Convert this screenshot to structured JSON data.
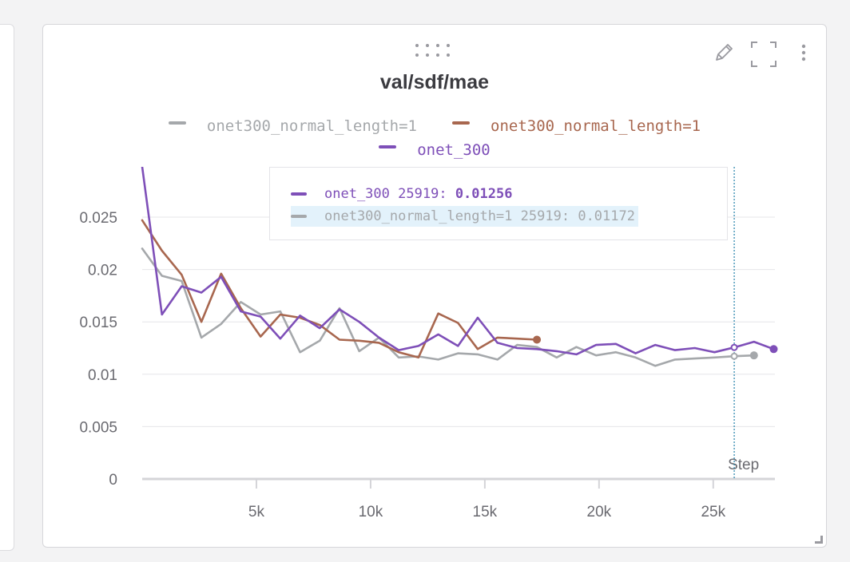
{
  "panel": {
    "title": "val/sdf/mae",
    "icons": {
      "edit": "pencil-icon",
      "fullscreen": "fullscreen-icon",
      "more": "more-vertical-icon",
      "drag": "drag-handle-icon"
    }
  },
  "colors": {
    "gray": "#a5a8ab",
    "brown": "#a8674f",
    "purple": "#7e4fb8",
    "cursor": "#1f7fa8"
  },
  "legend": [
    {
      "label": "onet300_normal_length=1",
      "color": "#a5a8ab"
    },
    {
      "label": "onet300_normal_length=1",
      "color": "#a8674f"
    },
    {
      "label": "onet_300",
      "color": "#7e4fb8"
    }
  ],
  "tooltip": {
    "rows": [
      {
        "series": "onet_300",
        "step": "25919:",
        "value": "0.01256",
        "color": "#7e4fb8",
        "bold_value": true,
        "highlight": false
      },
      {
        "series": "onet300_normal_length=1",
        "step": "25919:",
        "value": "0.01172",
        "color": "#a5a8ab",
        "bold_value": false,
        "highlight": true
      }
    ]
  },
  "chart_data": {
    "type": "line",
    "title": "val/sdf/mae",
    "xlabel": "Step",
    "ylabel": "",
    "xlim": [
      0,
      27700
    ],
    "ylim": [
      0,
      0.0252
    ],
    "x_ticks": [
      5000,
      10000,
      15000,
      20000,
      25000
    ],
    "x_tick_labels": [
      "5k",
      "10k",
      "15k",
      "20k",
      "25k"
    ],
    "y_ticks": [
      0,
      0.005,
      0.01,
      0.015,
      0.02,
      0.025
    ],
    "y_tick_labels": [
      "0",
      "0.005",
      "0.01",
      "0.015",
      "0.02",
      "0.025"
    ],
    "grid": true,
    "legend_position": "top",
    "hover_step": 25919,
    "series": [
      {
        "name": "onet300_normal_length=1",
        "color": "#a5a8ab",
        "x": [
          0,
          864,
          1728,
          2592,
          3456,
          4320,
          5184,
          6048,
          6912,
          7776,
          8640,
          9504,
          10368,
          11232,
          12096,
          12960,
          13824,
          14688,
          15552,
          16416,
          17280,
          18144,
          19008,
          19872,
          20736,
          21600,
          22464,
          23328,
          24192,
          25056,
          25919,
          26783
        ],
        "y": [
          0.022,
          0.0194,
          0.0189,
          0.0135,
          0.0148,
          0.0169,
          0.0157,
          0.016,
          0.0121,
          0.0132,
          0.0163,
          0.0122,
          0.0135,
          0.0116,
          0.0117,
          0.0114,
          0.012,
          0.0119,
          0.0114,
          0.0128,
          0.0126,
          0.0116,
          0.0126,
          0.0118,
          0.0121,
          0.0116,
          0.0108,
          0.0114,
          0.0115,
          0.0116,
          0.01172,
          0.0118
        ]
      },
      {
        "name": "onet300_normal_length=1",
        "color": "#a8674f",
        "x": [
          0,
          864,
          1728,
          2592,
          3456,
          4320,
          5184,
          6048,
          6912,
          7776,
          8640,
          9504,
          10368,
          11232,
          12096,
          12960,
          13824,
          14688,
          15552,
          16416,
          17280
        ],
        "y": [
          0.0247,
          0.0218,
          0.0195,
          0.015,
          0.0196,
          0.0163,
          0.0136,
          0.0157,
          0.0154,
          0.0147,
          0.0133,
          0.0132,
          0.013,
          0.0121,
          0.0116,
          0.0158,
          0.0149,
          0.0124,
          0.0135,
          0.0134,
          0.0133
        ]
      },
      {
        "name": "onet_300",
        "color": "#7e4fb8",
        "x": [
          0,
          864,
          1728,
          2592,
          3456,
          4320,
          5184,
          6048,
          6912,
          7776,
          8640,
          9504,
          10368,
          11232,
          12096,
          12960,
          13824,
          14688,
          15552,
          16416,
          17280,
          18144,
          19008,
          19872,
          20736,
          21600,
          22464,
          23328,
          24192,
          25056,
          25919,
          26783,
          27647
        ],
        "y": [
          0.0298,
          0.0157,
          0.0184,
          0.0178,
          0.0193,
          0.016,
          0.0155,
          0.0134,
          0.0156,
          0.0144,
          0.0162,
          0.015,
          0.0135,
          0.0123,
          0.0127,
          0.0138,
          0.0127,
          0.0154,
          0.013,
          0.0125,
          0.0124,
          0.0122,
          0.0119,
          0.0128,
          0.0129,
          0.012,
          0.0128,
          0.0123,
          0.0125,
          0.0121,
          0.01256,
          0.0131,
          0.0124
        ]
      }
    ]
  }
}
